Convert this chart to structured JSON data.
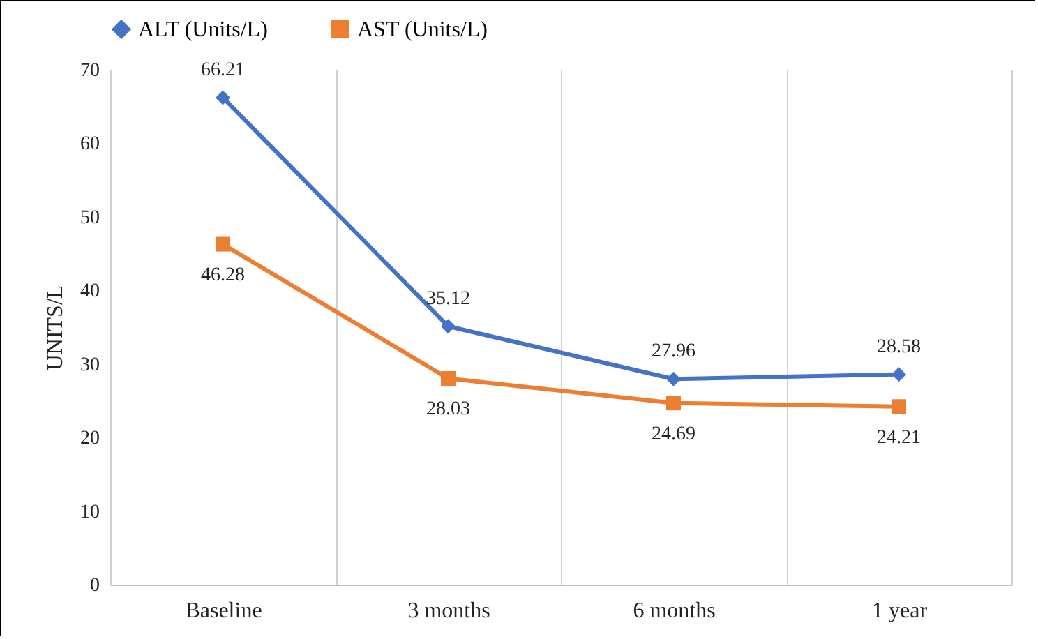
{
  "chart_data": {
    "type": "line",
    "ylabel": "UNITS/L",
    "categories": [
      "Baseline",
      "3 months",
      "6 months",
      "1 year"
    ],
    "series": [
      {
        "name": "ALT (Units/L)",
        "color": "#4472c4",
        "marker": "diamond",
        "values": [
          66.21,
          35.12,
          27.96,
          28.58
        ]
      },
      {
        "name": "AST (Units/L)",
        "color": "#ed7d31",
        "marker": "square",
        "values": [
          46.28,
          28.03,
          24.69,
          24.21
        ]
      }
    ],
    "ylim": [
      0,
      70
    ],
    "yticks": [
      0,
      10,
      20,
      30,
      40,
      50,
      60,
      70
    ],
    "grid": "x",
    "legend": "top",
    "data_labels": true,
    "line_style": "solid"
  }
}
